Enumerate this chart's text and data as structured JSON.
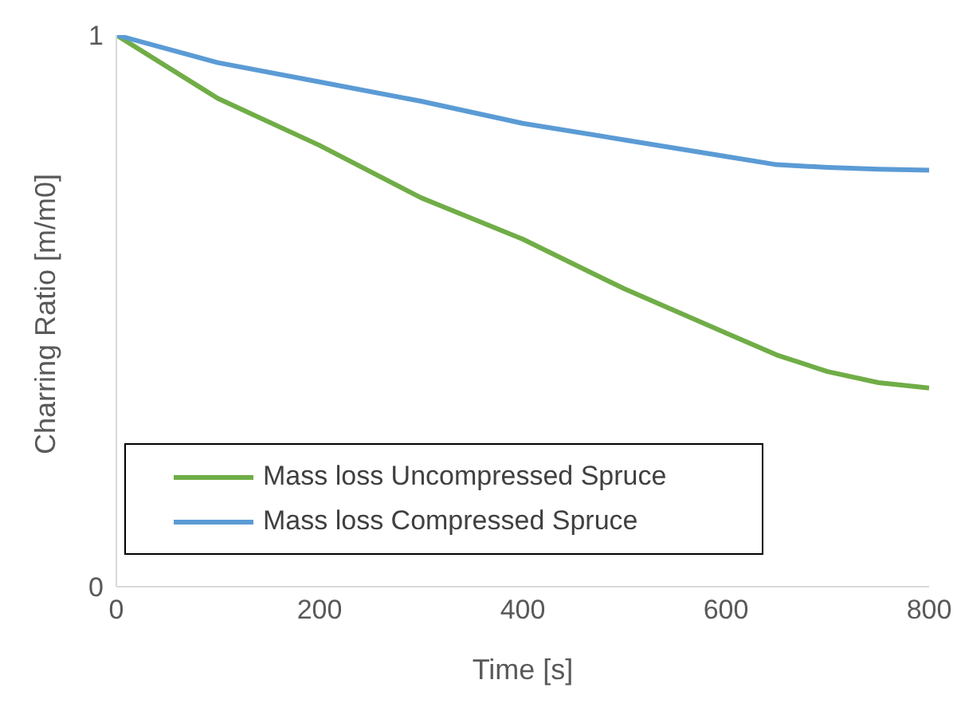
{
  "chart_data": {
    "type": "line",
    "xlabel": "Time [s]",
    "ylabel": "Charring Ratio [m/m0]",
    "x": [
      0,
      100,
      200,
      300,
      400,
      500,
      600,
      650,
      700,
      750,
      800
    ],
    "series": [
      {
        "name": "Mass loss Uncompressed Spruce",
        "color": "#70ad47",
        "values": [
          1,
          0.885,
          0.8,
          0.705,
          0.63,
          0.54,
          0.46,
          0.42,
          0.39,
          0.37,
          0.36
        ]
      },
      {
        "name": "Mass loss Compressed Spruce",
        "color": "#5b9bd5",
        "values": [
          1,
          0.95,
          0.915,
          0.88,
          0.84,
          0.81,
          0.78,
          0.765,
          0.76,
          0.757,
          0.755
        ]
      }
    ],
    "xlim": [
      0,
      800
    ],
    "xticks": [
      0,
      200,
      400,
      600,
      800
    ],
    "ylim": [
      0,
      1
    ],
    "yticks": [
      0,
      1
    ],
    "grid": false,
    "legend": "bottom left",
    "marker": "none",
    "line_style": "solid"
  }
}
